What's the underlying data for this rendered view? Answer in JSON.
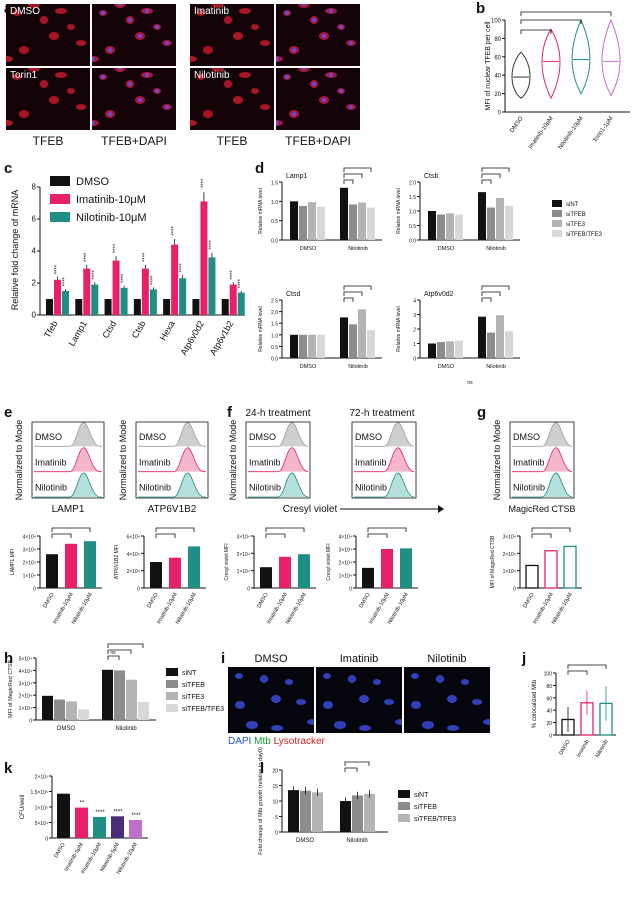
{
  "panels": {
    "a": {
      "label": "a",
      "images": [
        "DMSO",
        "Imatinib",
        "Torin1",
        "Nilotinib"
      ],
      "captions": [
        "TFEB",
        "TFEB+DAPI",
        "TFEB",
        "TFEB+DAPI"
      ]
    },
    "b": {
      "label": "b",
      "ylabel": "MFI of nuclear TFEB per cell",
      "categories": [
        "DMSO",
        "Imatinib-10μM",
        "Nilotinib-10μM",
        "Torin1-1μM"
      ],
      "yticks": [
        "0",
        "20",
        "40",
        "60",
        "80",
        "100"
      ]
    },
    "c": {
      "label": "c",
      "ylabel": "Relative fold change of mRNA",
      "yticks": [
        "0",
        "2",
        "4",
        "6",
        "8"
      ]
    },
    "d": {
      "label": "d",
      "ylabel": "Relative mRNA level",
      "titles": [
        "Lamp1",
        "Ctsb",
        "Ctsd",
        "Atp6v0d2"
      ],
      "xcats": [
        "DMSO",
        "Nilotinib"
      ],
      "ns": "ns"
    },
    "e": {
      "label": "e",
      "ylabel": "Normalized to Mode",
      "hist_labels": [
        "DMSO",
        "Imatinib",
        "Nilotinib"
      ],
      "xlabels": [
        "LAMP1",
        "ATP6V1B2"
      ],
      "mfi_ylabels": [
        "LAMP1 MFI",
        "ATP6V1B2 MFI"
      ],
      "yt1": [
        "0",
        "1×10⁴",
        "2×10⁴",
        "3×10⁴",
        "4×10⁴"
      ],
      "yt2": [
        "0",
        "2×10⁴",
        "4×10⁴",
        "6×10⁴"
      ]
    },
    "f": {
      "label": "f",
      "titles": [
        "24-h treatment",
        "72-h treatment"
      ],
      "xlabel": "Cresyl violet",
      "mfi_ylabel": "Cresyl violet MFI",
      "yt": [
        "0",
        "1×10⁴",
        "2×10⁴",
        "3×10⁴"
      ]
    },
    "g": {
      "label": "g",
      "xlabel": "MagicRed CTSB",
      "mfi_ylabel": "MFI of MagicRed CTSB",
      "yt": [
        "0",
        "1×10⁴",
        "2×10⁴",
        "3×10⁴"
      ]
    },
    "h": {
      "label": "h",
      "ylabel": "MFI of MagicRed CTSB",
      "yticks": [
        "0",
        "1×10⁴",
        "2×10⁴",
        "3×10⁴",
        "4×10⁴",
        "5×10⁴"
      ],
      "xcats": [
        "DMSO",
        "Nilotinib"
      ],
      "ns": "ns"
    },
    "i": {
      "label": "i",
      "titles": [
        "DMSO",
        "Imatinib",
        "Nilotinib"
      ],
      "legend": [
        "DAPI",
        "Mtb",
        "Lysotracker"
      ]
    },
    "j": {
      "label": "j",
      "ylabel": "% colocalized Mtb",
      "yticks": [
        "0",
        "20",
        "40",
        "60",
        "80",
        "100"
      ],
      "categories": [
        "DMSO",
        "Imatinib",
        "Nilotinib"
      ]
    },
    "k": {
      "label": "k",
      "ylabel": "CFU/well",
      "yticks": [
        "0",
        "5×10⁴",
        "1×10⁵",
        "1.5×10⁵",
        "2×10⁵"
      ],
      "categories": [
        "DMSO",
        "Imatinib-5μM",
        "Imatinib-10μM",
        "Nilotinib-5μM",
        "Nilotinib-10μM"
      ]
    },
    "l": {
      "label": "l",
      "ylabel": "Fold change of Mtb growth (relative to day0)",
      "yticks": [
        "0",
        "5",
        "10",
        "15",
        "20"
      ],
      "xcats": [
        "DMSO",
        "Nilotinib"
      ]
    }
  },
  "colors": {
    "black": "#111111",
    "pink": "#e8206a",
    "teal": "#1f8f86",
    "grey1": "#8c8c8c",
    "grey2": "#b4b4b4",
    "grey3": "#d8d8d8",
    "violet": "#c070c8"
  },
  "chart_data": [
    {
      "panel": "c",
      "type": "bar",
      "categories": [
        "Tfeb",
        "Lamp1",
        "Ctsd",
        "Ctsb",
        "Hexa",
        "Atp6v0d2",
        "Atp6v1b2"
      ],
      "series": [
        {
          "name": "DMSO",
          "values": [
            1,
            1,
            1,
            1,
            1,
            1,
            1
          ]
        },
        {
          "name": "Imatinib-10μM",
          "values": [
            2.2,
            2.9,
            3.4,
            2.9,
            4.4,
            7.1,
            1.9
          ]
        },
        {
          "name": "Nilotinib-10μM",
          "values": [
            1.5,
            1.9,
            1.7,
            1.6,
            2.3,
            3.6,
            1.4
          ]
        }
      ],
      "ylim": [
        0,
        8
      ],
      "annotations": [
        "****",
        "****",
        "****",
        "****",
        "****",
        "****",
        "****",
        "****",
        "****",
        "****",
        "****",
        "**",
        "****",
        "**"
      ]
    },
    {
      "panel": "d-Lamp1",
      "type": "bar",
      "categories": [
        "DMSO",
        "Nilotinib"
      ],
      "series": [
        {
          "name": "siNT",
          "values": [
            1.0,
            1.35
          ]
        },
        {
          "name": "siTFEB",
          "values": [
            0.88,
            0.92
          ]
        },
        {
          "name": "siTFE3",
          "values": [
            0.98,
            0.97
          ]
        },
        {
          "name": "siTFEB/TFE3",
          "values": [
            0.86,
            0.84
          ]
        }
      ],
      "ylim": [
        0,
        1.5
      ]
    },
    {
      "panel": "d-Ctsb",
      "type": "bar",
      "categories": [
        "DMSO",
        "Nilotinib"
      ],
      "series": [
        {
          "name": "siNT",
          "values": [
            1.0,
            1.65
          ]
        },
        {
          "name": "siTFEB",
          "values": [
            0.88,
            1.12
          ]
        },
        {
          "name": "siTFE3",
          "values": [
            0.92,
            1.45
          ]
        },
        {
          "name": "siTFEB/TFE3",
          "values": [
            0.88,
            1.18
          ]
        }
      ],
      "ylim": [
        0,
        2.0
      ]
    },
    {
      "panel": "d-Ctsd",
      "type": "bar",
      "categories": [
        "DMSO",
        "Nilotinib"
      ],
      "series": [
        {
          "name": "siNT",
          "values": [
            1.0,
            1.75
          ]
        },
        {
          "name": "siTFEB",
          "values": [
            1.0,
            1.45
          ]
        },
        {
          "name": "siTFE3",
          "values": [
            1.0,
            2.1
          ]
        },
        {
          "name": "siTFEB/TFE3",
          "values": [
            1.0,
            1.2
          ]
        }
      ],
      "ylim": [
        0,
        2.5
      ]
    },
    {
      "panel": "d-Atp6v0d2",
      "type": "bar",
      "categories": [
        "DMSO",
        "Nilotinib"
      ],
      "series": [
        {
          "name": "siNT",
          "values": [
            1.0,
            2.85
          ]
        },
        {
          "name": "siTFEB",
          "values": [
            1.1,
            1.75
          ]
        },
        {
          "name": "siTFE3",
          "values": [
            1.15,
            2.95
          ]
        },
        {
          "name": "siTFEB/TFE3",
          "values": [
            1.2,
            1.85
          ]
        }
      ],
      "ylim": [
        0,
        4
      ]
    },
    {
      "panel": "e-LAMP1",
      "type": "bar",
      "categories": [
        "DMSO",
        "Imatinib-10μM",
        "Nilotinib-10μM"
      ],
      "values": [
        26000,
        34000,
        36000
      ],
      "ylim": [
        0,
        40000
      ]
    },
    {
      "panel": "e-ATP6V1B2",
      "type": "bar",
      "categories": [
        "DMSO",
        "Imatinib-10μM",
        "Nilotinib-10μM"
      ],
      "values": [
        30000,
        35000,
        48000
      ],
      "ylim": [
        0,
        60000
      ]
    },
    {
      "panel": "f-24h",
      "type": "bar",
      "categories": [
        "DMSO",
        "Imatinib-10μM",
        "Nilotinib-10μM"
      ],
      "values": [
        12000,
        18000,
        19500
      ],
      "ylim": [
        0,
        30000
      ]
    },
    {
      "panel": "f-72h",
      "type": "bar",
      "categories": [
        "DMSO",
        "Imatinib-10μM",
        "Nilotinib-10μM"
      ],
      "values": [
        15500,
        30000,
        30500
      ],
      "ylim": [
        0,
        40000
      ]
    },
    {
      "panel": "g",
      "type": "bar",
      "categories": [
        "DMSO",
        "Imatinib-10μM",
        "Nilotinib-10μM"
      ],
      "values": [
        13000,
        21500,
        24000
      ],
      "ylim": [
        0,
        30000
      ]
    },
    {
      "panel": "h",
      "type": "bar",
      "categories": [
        "DMSO",
        "Nilotinib"
      ],
      "series": [
        {
          "name": "siNT",
          "values": [
            19500,
            40500
          ]
        },
        {
          "name": "siTFEB",
          "values": [
            16500,
            40000
          ]
        },
        {
          "name": "siTFE3",
          "values": [
            15000,
            32500
          ]
        },
        {
          "name": "siTFEB/TFE3",
          "values": [
            8500,
            14500
          ]
        }
      ],
      "ylim": [
        0,
        50000
      ]
    },
    {
      "panel": "j",
      "type": "bar",
      "categories": [
        "DMSO",
        "Imatinib",
        "Nilotinib"
      ],
      "values": [
        25,
        52,
        51
      ],
      "errors": [
        20,
        20,
        28
      ],
      "ylim": [
        0,
        100
      ]
    },
    {
      "panel": "k",
      "type": "bar",
      "categories": [
        "DMSO",
        "Imatinib-5μM",
        "Imatinib-10μM",
        "Nilotinib-5μM",
        "Nilotinib-10μM"
      ],
      "values": [
        143000,
        98000,
        68000,
        70000,
        58000
      ],
      "ylim": [
        0,
        200000
      ],
      "annotations": [
        "**",
        "****",
        "****",
        "****"
      ]
    },
    {
      "panel": "l",
      "type": "bar",
      "categories": [
        "DMSO",
        "Nilotinib"
      ],
      "series": [
        {
          "name": "siNT",
          "values": [
            13.5,
            10
          ]
        },
        {
          "name": "siTFEB",
          "values": [
            13.3,
            11.8
          ]
        },
        {
          "name": "siTFEB/TFE3",
          "values": [
            12.8,
            12.3
          ]
        }
      ],
      "ylim": [
        0,
        20
      ]
    }
  ]
}
